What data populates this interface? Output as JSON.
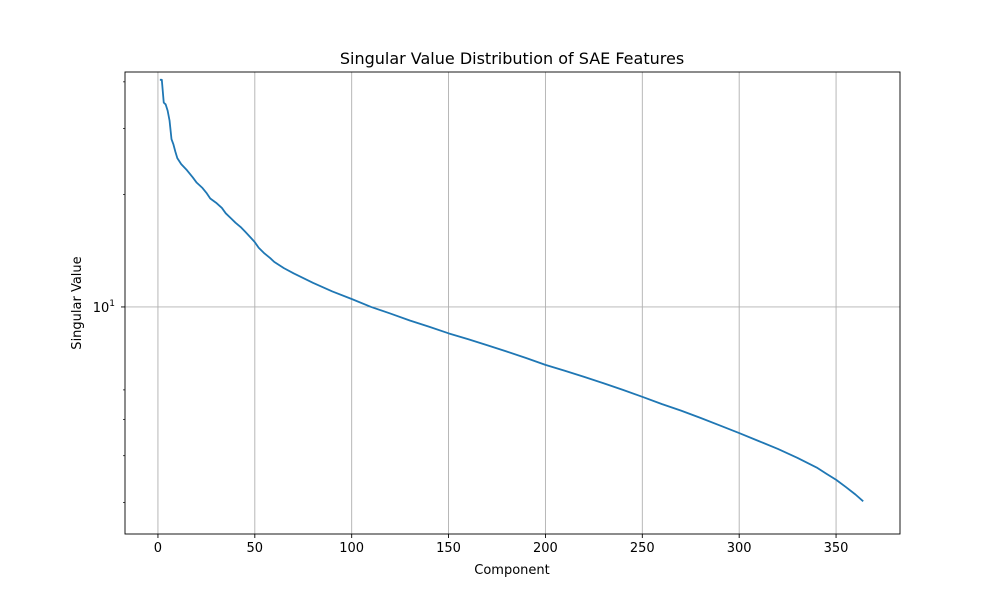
{
  "chart_data": {
    "type": "line",
    "title": "Singular Value Distribution of SAE Features",
    "xlabel": "Component",
    "ylabel": "Singular Value",
    "xlim": [
      -17,
      383
    ],
    "ylim": [
      2.47,
      42.5
    ],
    "yscale": "log",
    "grid": true,
    "x_ticks": [
      0,
      50,
      100,
      150,
      200,
      250,
      300,
      350
    ],
    "y_major_tick": {
      "base": "10",
      "exponent": "1",
      "value": 10
    },
    "y_minor_ticks": [
      3,
      4,
      5,
      6,
      20,
      30,
      40
    ],
    "series": [
      {
        "color": "#1f77b4",
        "points": [
          [
            1,
            40.5
          ],
          [
            2,
            40.5
          ],
          [
            3,
            35.2
          ],
          [
            4,
            34.8
          ],
          [
            5,
            33.5
          ],
          [
            6,
            31.5
          ],
          [
            7,
            28.1
          ],
          [
            8,
            27.2
          ],
          [
            9,
            26.0
          ],
          [
            10,
            25.0
          ],
          [
            12,
            24.1
          ],
          [
            15,
            23.2
          ],
          [
            18,
            22.2
          ],
          [
            20,
            21.5
          ],
          [
            23,
            20.8
          ],
          [
            25,
            20.2
          ],
          [
            27,
            19.5
          ],
          [
            30,
            19.0
          ],
          [
            33,
            18.4
          ],
          [
            35,
            17.8
          ],
          [
            38,
            17.2
          ],
          [
            40,
            16.8
          ],
          [
            43,
            16.3
          ],
          [
            45,
            15.9
          ],
          [
            48,
            15.3
          ],
          [
            50,
            14.9
          ],
          [
            52,
            14.4
          ],
          [
            55,
            13.9
          ],
          [
            58,
            13.5
          ],
          [
            60,
            13.2
          ],
          [
            65,
            12.7
          ],
          [
            70,
            12.3
          ],
          [
            80,
            11.6
          ],
          [
            90,
            11.0
          ],
          [
            100,
            10.5
          ],
          [
            110,
            10.0
          ],
          [
            120,
            9.6
          ],
          [
            130,
            9.2
          ],
          [
            140,
            8.85
          ],
          [
            150,
            8.5
          ],
          [
            160,
            8.2
          ],
          [
            170,
            7.9
          ],
          [
            180,
            7.6
          ],
          [
            190,
            7.3
          ],
          [
            200,
            7.0
          ],
          [
            210,
            6.75
          ],
          [
            220,
            6.5
          ],
          [
            230,
            6.25
          ],
          [
            240,
            6.0
          ],
          [
            250,
            5.75
          ],
          [
            260,
            5.5
          ],
          [
            270,
            5.28
          ],
          [
            280,
            5.05
          ],
          [
            290,
            4.82
          ],
          [
            300,
            4.6
          ],
          [
            310,
            4.38
          ],
          [
            320,
            4.17
          ],
          [
            330,
            3.95
          ],
          [
            340,
            3.72
          ],
          [
            345,
            3.58
          ],
          [
            350,
            3.45
          ],
          [
            355,
            3.3
          ],
          [
            360,
            3.15
          ],
          [
            364,
            3.02
          ]
        ]
      }
    ]
  }
}
